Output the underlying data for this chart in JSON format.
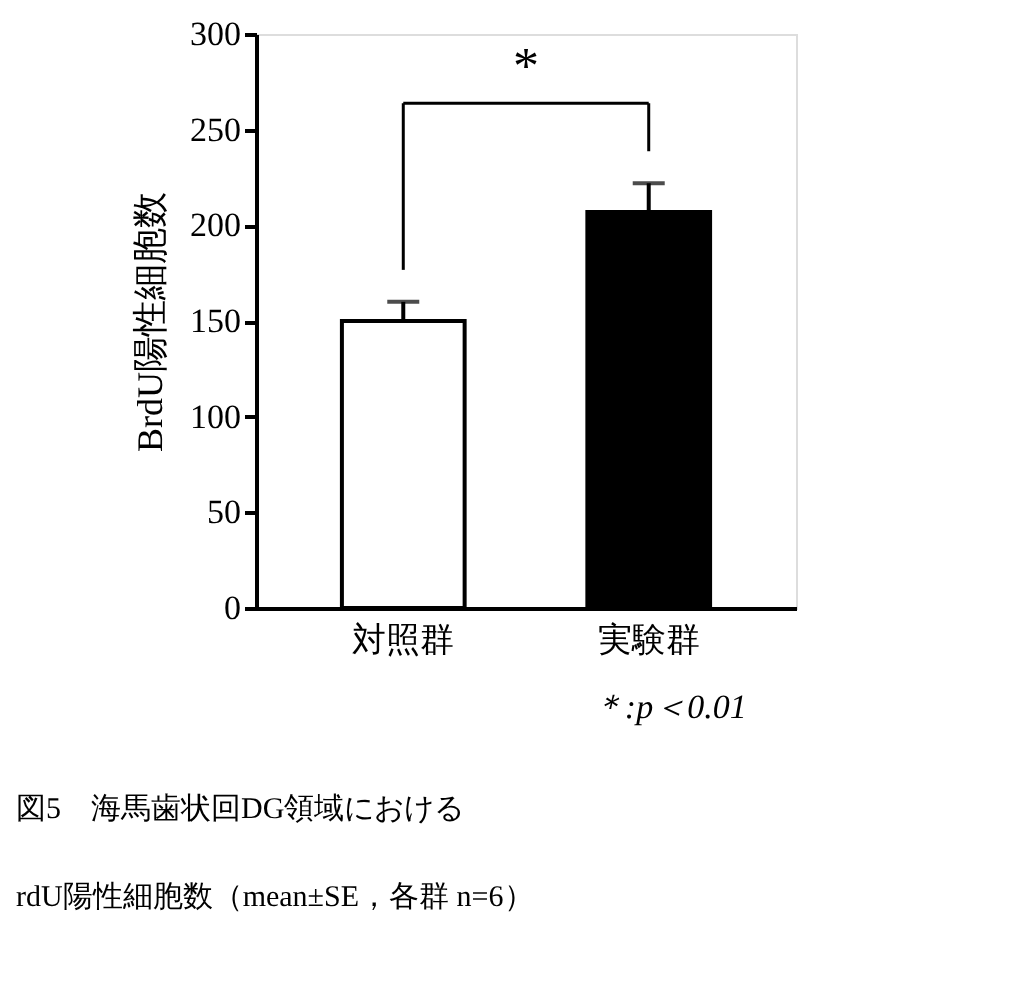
{
  "chart_data": {
    "type": "bar",
    "ylabel": "BrdU陽性細胞数",
    "categories": [
      "対照群",
      "実験群"
    ],
    "values": [
      150,
      207
    ],
    "errors": [
      10,
      15
    ],
    "colors": [
      "#ffffff",
      "#000000"
    ],
    "ylim": [
      0,
      300
    ],
    "yticks": [
      0,
      50,
      100,
      150,
      200,
      250,
      300
    ],
    "grid": false,
    "annotations": [
      "*",
      "＊:p＜0.01",
      "図5　海馬歯状回DG領域における",
      "rdU陽性細胞数（mean±SE，各群 n=6）"
    ]
  }
}
